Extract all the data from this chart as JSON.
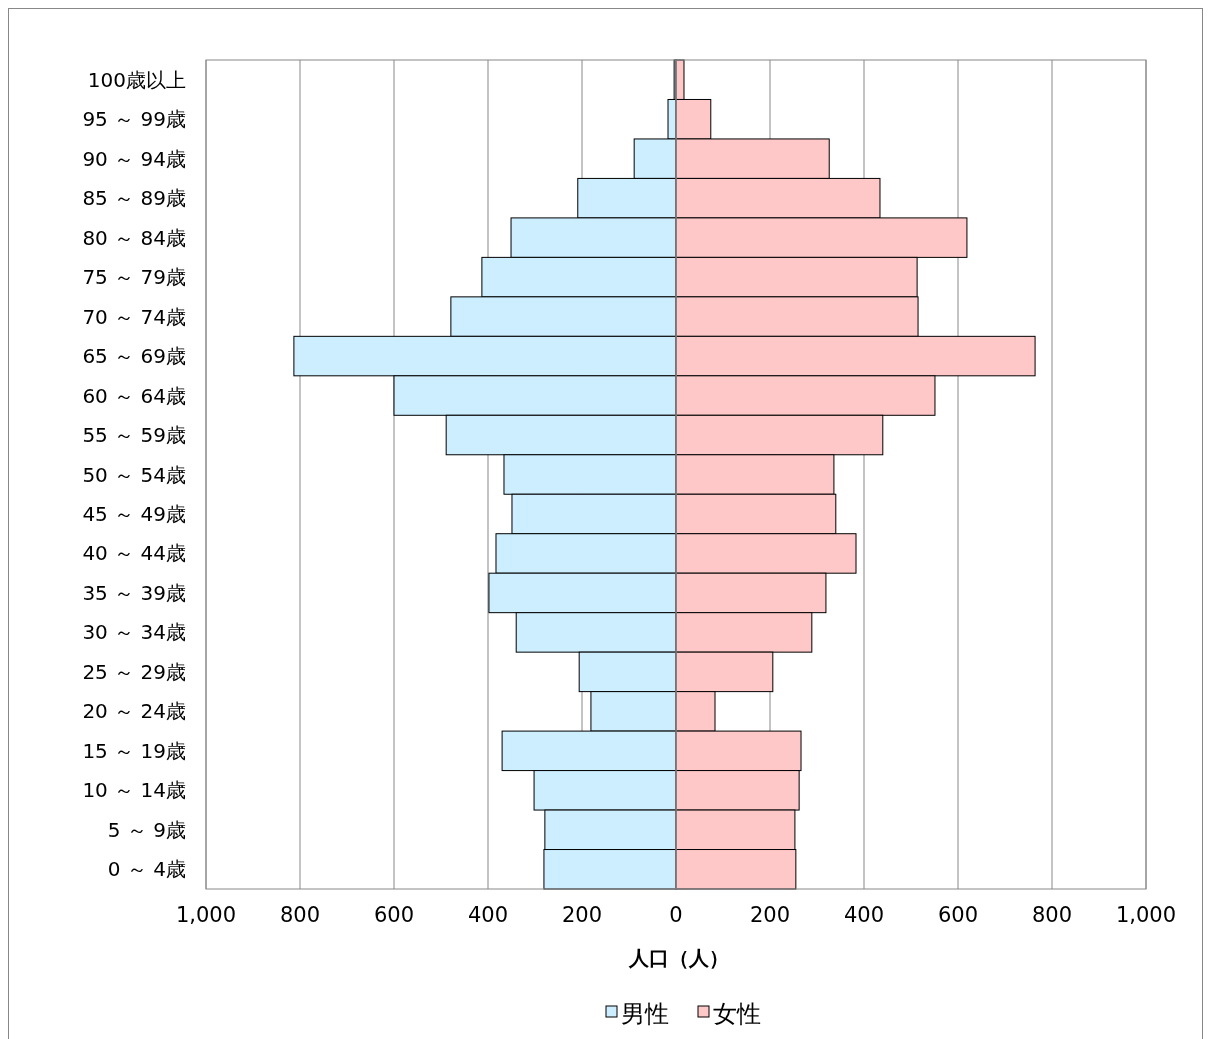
{
  "chart_data": {
    "type": "bar",
    "orientation": "horizontal",
    "xlabel": "人口（人）",
    "categories": [
      "100歳以上",
      "95 ～ 99歳",
      "90 ～ 94歳",
      "85 ～ 89歳",
      "80 ～ 84歳",
      "75 ～ 79歳",
      "70 ～ 74歳",
      "65 ～ 69歳",
      "60 ～ 64歳",
      "55 ～ 59歳",
      "50 ～ 54歳",
      "45 ～ 49歳",
      "40 ～ 44歳",
      "35 ～ 39歳",
      "30 ～ 34歳",
      "25 ～ 29歳",
      "20 ～ 24歳",
      "15 ～ 19歳",
      "10 ～ 14歳",
      "5 ～ 9歳",
      "0 ～ 4歳"
    ],
    "series": [
      {
        "name": "男性",
        "color": "#cceeff",
        "values": [
          -4,
          -17,
          -89,
          -209,
          -351,
          -413,
          -479,
          -813,
          -600,
          -489,
          -366,
          -349,
          -383,
          -398,
          -340,
          -206,
          -181,
          -370,
          -302,
          -279,
          -281
        ]
      },
      {
        "name": "女性",
        "color": "#ffc8c8",
        "values": [
          17,
          74,
          326,
          434,
          619,
          513,
          515,
          764,
          551,
          440,
          336,
          340,
          383,
          319,
          289,
          206,
          83,
          266,
          262,
          253,
          255
        ]
      }
    ],
    "xlim": [
      -1000,
      1000
    ],
    "xticks": [
      {
        "value": -1000,
        "label": "1,000"
      },
      {
        "value": -800,
        "label": "800"
      },
      {
        "value": -600,
        "label": "600"
      },
      {
        "value": -400,
        "label": "400"
      },
      {
        "value": -200,
        "label": "200"
      },
      0,
      200,
      400,
      600,
      800,
      {
        "value": 1000,
        "label": "1,000"
      }
    ],
    "grid": "x",
    "legend": "bottom",
    "stacked": true
  }
}
